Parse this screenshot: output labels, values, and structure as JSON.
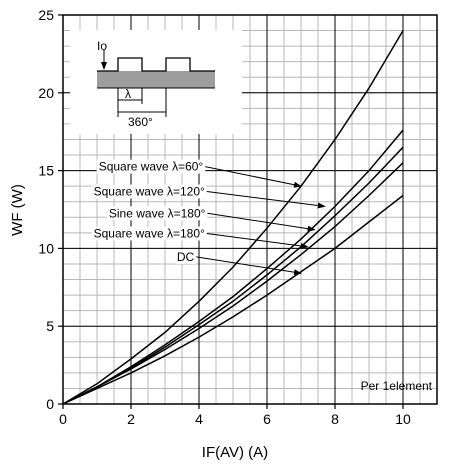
{
  "chart_data": {
    "type": "line",
    "title": "",
    "xlabel": "IF(AV)  (A)",
    "ylabel": "WF  (W)",
    "xlim": [
      0,
      11
    ],
    "ylim": [
      0,
      25
    ],
    "x_ticks": [
      0,
      2,
      4,
      6,
      8,
      10
    ],
    "y_ticks": [
      0,
      5,
      10,
      15,
      20,
      25
    ],
    "x_tick_labels": [
      "0",
      "2",
      "4",
      "6",
      "8",
      "10"
    ],
    "y_tick_labels": [
      "0",
      "5",
      "10",
      "15",
      "20",
      "25"
    ],
    "grid": true,
    "note": "Per 1element",
    "inset": {
      "io_label": "Io",
      "lambda_label": "λ",
      "period_label": "360°"
    },
    "series": [
      {
        "name": "Square wave λ=60°",
        "x": [
          0,
          1,
          2,
          3,
          4,
          5,
          6,
          7,
          8,
          9,
          10
        ],
        "y": [
          0,
          1.3,
          2.9,
          4.6,
          6.6,
          8.8,
          11.3,
          14.0,
          17.0,
          20.3,
          24.0
        ],
        "label_x": 1.05,
        "label_y": 15.0,
        "arrow_to": [
          7.0,
          14.0
        ]
      },
      {
        "name": "Square wave λ=120°",
        "x": [
          0,
          1,
          2,
          3,
          4,
          5,
          6,
          7,
          8,
          9,
          10
        ],
        "y": [
          0,
          1.1,
          2.4,
          3.8,
          5.3,
          6.9,
          8.7,
          10.6,
          12.7,
          15.0,
          17.6
        ],
        "label_x": 0.9,
        "label_y": 13.4,
        "arrow_to": [
          7.7,
          12.7
        ]
      },
      {
        "name": "Sine wave λ=180°",
        "x": [
          0,
          1,
          2,
          3,
          4,
          5,
          6,
          7,
          8,
          9,
          10
        ],
        "y": [
          0,
          1.1,
          2.3,
          3.65,
          5.1,
          6.6,
          8.3,
          10.1,
          12.1,
          14.2,
          16.5
        ],
        "label_x": 1.35,
        "label_y": 12.0,
        "arrow_to": [
          7.4,
          11.2
        ]
      },
      {
        "name": "Square wave λ=180°",
        "x": [
          0,
          1,
          2,
          3,
          4,
          5,
          6,
          7,
          8,
          9,
          10
        ],
        "y": [
          0,
          1.1,
          2.25,
          3.5,
          4.85,
          6.3,
          7.9,
          9.6,
          11.4,
          13.4,
          15.5
        ],
        "label_x": 0.9,
        "label_y": 10.7,
        "arrow_to": [
          7.2,
          10.1
        ]
      },
      {
        "name": "DC",
        "x": [
          0,
          1,
          2,
          3,
          4,
          5,
          6,
          7,
          8,
          9,
          10
        ],
        "y": [
          0,
          1.0,
          2.0,
          3.1,
          4.3,
          5.6,
          7.0,
          8.5,
          10.0,
          11.7,
          13.4
        ],
        "label_x": 3.35,
        "label_y": 9.2,
        "arrow_to": [
          7.0,
          8.4
        ]
      }
    ]
  }
}
